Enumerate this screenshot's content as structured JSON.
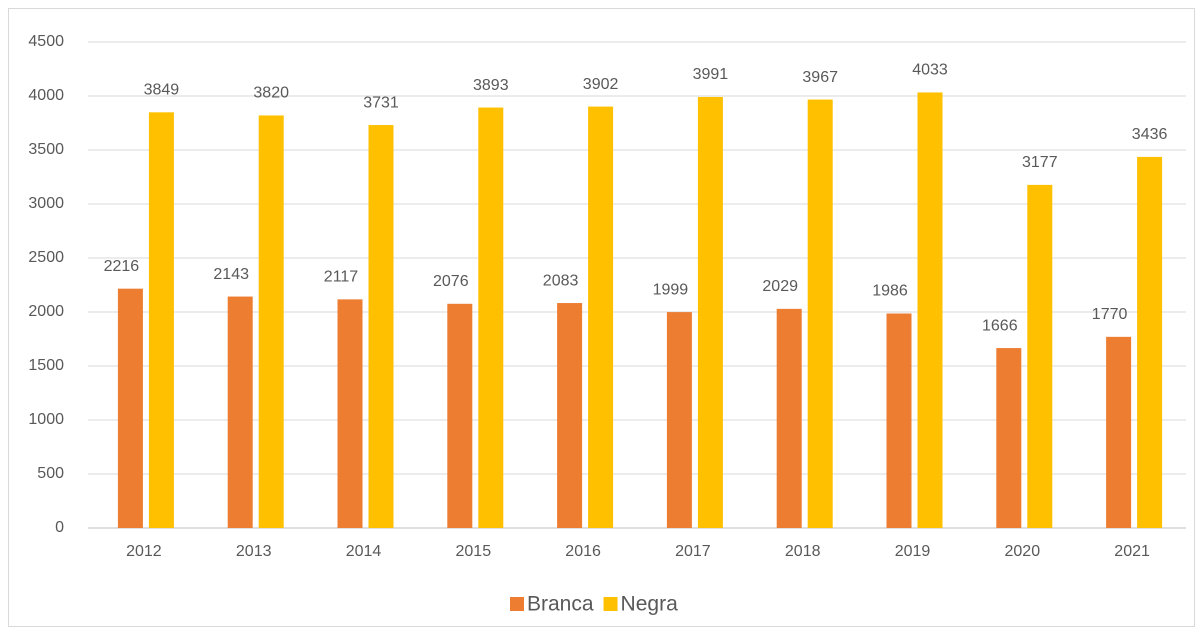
{
  "chart_data": {
    "type": "bar",
    "categories": [
      "2012",
      "2013",
      "2014",
      "2015",
      "2016",
      "2017",
      "2018",
      "2019",
      "2020",
      "2021"
    ],
    "series": [
      {
        "name": "Branca",
        "color": "#ED7D31",
        "values": [
          2216,
          2143,
          2117,
          2076,
          2083,
          1999,
          2029,
          1986,
          1666,
          1770
        ]
      },
      {
        "name": "Negra",
        "color": "#FFC000",
        "values": [
          3849,
          3820,
          3731,
          3893,
          3902,
          3991,
          3967,
          4033,
          3177,
          3436
        ]
      }
    ],
    "ylim": [
      0,
      4500
    ],
    "yticks": [
      0,
      500,
      1000,
      1500,
      2000,
      2500,
      3000,
      3500,
      4000,
      4500
    ],
    "grid": true,
    "legend": "bottom",
    "data_labels": true
  }
}
